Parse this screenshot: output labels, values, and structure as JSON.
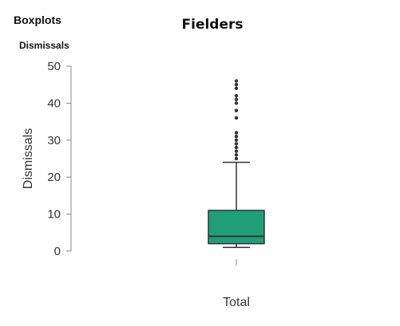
{
  "header": {
    "section_title": "Boxplots",
    "variable_title": "Dismissals"
  },
  "chart_data": {
    "type": "boxplot",
    "title": "Fielders",
    "xlabel": "",
    "ylabel": "Dismissals",
    "ylim": [
      0,
      50
    ],
    "yticks": [
      0,
      10,
      20,
      30,
      40,
      50
    ],
    "grid": false,
    "categories": [
      "Total"
    ],
    "box": {
      "min": 1,
      "q1": 2,
      "median": 4,
      "q3": 11,
      "whisker_high": 24
    },
    "outliers": [
      25,
      26,
      27,
      28,
      29,
      30,
      31,
      32,
      36,
      38,
      40,
      41,
      42,
      44,
      45,
      46
    ],
    "colors": {
      "box_fill": "#1f9e78",
      "box_stroke": "#333333",
      "outlier": "#333333",
      "axis": "#888888"
    }
  }
}
